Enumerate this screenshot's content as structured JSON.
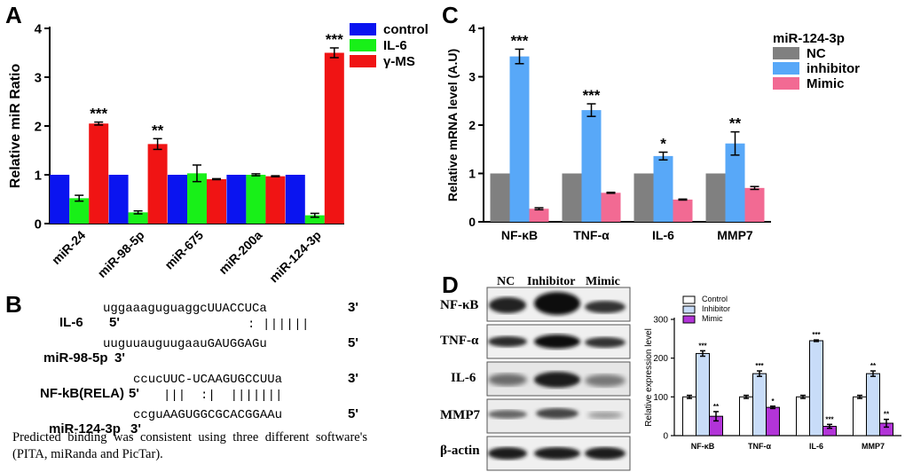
{
  "panels": {
    "A": "A",
    "B": "B",
    "C": "C",
    "D": "D"
  },
  "chart_data": [
    {
      "id": "A",
      "type": "bar",
      "ylabel": "Relative miR Ratio",
      "ylim": [
        0,
        4
      ],
      "yticks": [
        0,
        1,
        2,
        3,
        4
      ],
      "categories": [
        "miR-24",
        "miR-98-5p",
        "miR-675",
        "miR-200a",
        "miR-124-3p"
      ],
      "series": [
        {
          "name": "control",
          "color": "#0a14f0",
          "values": [
            1.0,
            1.0,
            1.0,
            1.0,
            1.0
          ],
          "errors": [
            0,
            0,
            0,
            0,
            0
          ],
          "sig": [
            "",
            "",
            "",
            "",
            ""
          ]
        },
        {
          "name": "IL-6",
          "color": "#18f018",
          "values": [
            0.52,
            0.23,
            1.03,
            1.0,
            0.17
          ],
          "errors": [
            0.06,
            0.03,
            0.17,
            0.02,
            0.04
          ],
          "sig": [
            "",
            "",
            "",
            "",
            ""
          ]
        },
        {
          "name": "γ-MS",
          "color": "#f01414",
          "values": [
            2.05,
            1.63,
            0.91,
            0.97,
            3.5
          ],
          "errors": [
            0.03,
            0.11,
            0.01,
            0.01,
            0.1
          ],
          "sig": [
            "***",
            "**",
            "",
            "",
            "***"
          ]
        }
      ],
      "legend": "top-right"
    },
    {
      "id": "C",
      "type": "bar",
      "ylabel": "Relative mRNA level  (A.U)",
      "ylim": [
        0,
        4
      ],
      "yticks": [
        0,
        1,
        2,
        3,
        4
      ],
      "categories": [
        "NF-κB",
        "TNF-α",
        "IL-6",
        "MMP7"
      ],
      "legend_title": "miR-124-3p",
      "series": [
        {
          "name": "NC",
          "color": "#808080",
          "values": [
            1.0,
            1.0,
            1.0,
            1.0
          ],
          "errors": [
            0,
            0,
            0,
            0
          ],
          "sig": [
            "",
            "",
            "",
            ""
          ]
        },
        {
          "name": "inhibitor",
          "color": "#58a8f8",
          "values": [
            3.42,
            2.31,
            1.36,
            1.62
          ],
          "errors": [
            0.15,
            0.13,
            0.08,
            0.24
          ],
          "sig": [
            "***",
            "***",
            "*",
            "**"
          ]
        },
        {
          "name": "Mimic",
          "color": "#f26a93",
          "values": [
            0.27,
            0.6,
            0.46,
            0.7
          ],
          "errors": [
            0.02,
            0.01,
            0.01,
            0.03
          ],
          "sig": [
            "",
            "",
            "",
            ""
          ]
        }
      ],
      "legend": "top-right"
    },
    {
      "id": "D-quant",
      "type": "bar",
      "ylabel": "Relative expression level",
      "ylim": [
        0,
        300
      ],
      "yticks": [
        0,
        100,
        200,
        300
      ],
      "categories": [
        "NF-κB",
        "TNF-α",
        "IL-6",
        "MMP7"
      ],
      "series": [
        {
          "name": "Control",
          "color": "#ffffff",
          "values": [
            100,
            100,
            100,
            100
          ],
          "errors": [
            4,
            4,
            4,
            4
          ],
          "sig": [
            "",
            "",
            "",
            ""
          ]
        },
        {
          "name": "Inhibitor",
          "color": "#c8dcf8",
          "values": [
            212,
            160,
            245,
            160
          ],
          "errors": [
            7,
            7,
            2,
            7
          ],
          "sig": [
            "***",
            "***",
            "***",
            "**"
          ]
        },
        {
          "name": "Mimic",
          "color": "#b234d8",
          "values": [
            50,
            73,
            24,
            32
          ],
          "errors": [
            12,
            3,
            5,
            10
          ],
          "sig": [
            "**",
            "*",
            "***",
            "**"
          ]
        }
      ],
      "legend": "top-left"
    }
  ],
  "sequences": {
    "row1": {
      "label": "IL-6",
      "p": "5'",
      "seq_lower": "uggaaaguguaggc",
      "seq_upper": "UUACCUCa",
      "end": "3'"
    },
    "bars1": "||||||",
    "dots1": ":",
    "row2": {
      "label": "miR-98-5p",
      "p": "3'",
      "seq_lower": "uuguuauguugaau",
      "seq_upper": "GAUGGAGu",
      "end": "5'"
    },
    "row3": {
      "label": "NF-kB(RELA)",
      "p": "5'",
      "seq_lower": "ccuc",
      "seq_upper": "UUC-UCAAGUGCCUUa",
      "end": "3'"
    },
    "bars3": "|||  :|  |||||||",
    "row4": {
      "label": "miR-124-3p",
      "p": "3'",
      "seq_lower": "ccgu",
      "seq_upper": "AAGUGGCGCACGGAAu",
      "end": "5'"
    }
  },
  "caption": "Predicted binding was consistent using three different software's (PITA, miRanda and PicTar).",
  "blot": {
    "columns": [
      "NC",
      "Inhibitor",
      "Mimic"
    ],
    "rows": [
      "NF-κB",
      "TNF-α",
      "IL-6",
      "MMP7",
      "β-actin"
    ]
  }
}
